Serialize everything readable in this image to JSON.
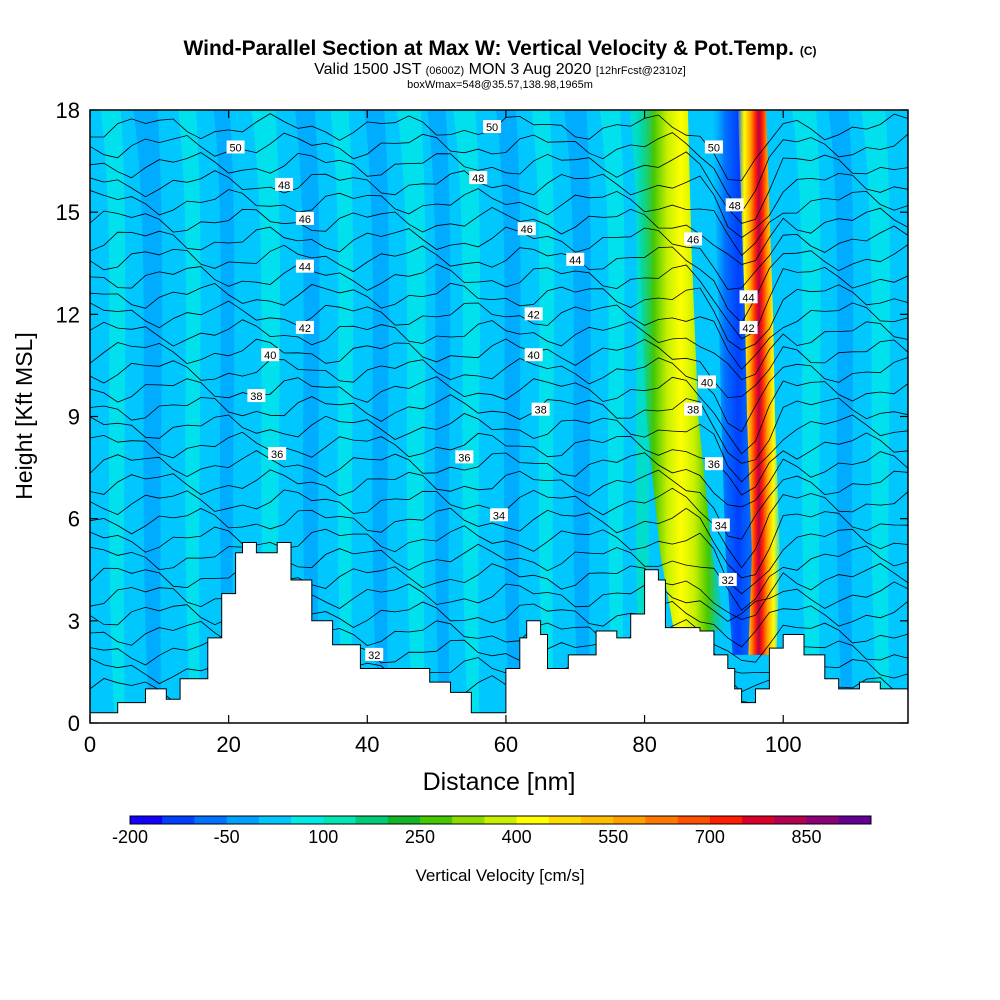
{
  "header": {
    "title": "Wind-Parallel Section at Max W: Vertical Velocity & Pot.Temp.",
    "title_mark": "(C)",
    "valid_prefix": "Valid 1500 JST",
    "valid_utc": "(0600Z)",
    "valid_date": "MON 3 Aug 2020",
    "forecast_note": "[12hrFcst@2310z]",
    "box_info": "boxWmax=548@35.57,138.98,1965m"
  },
  "chart_data": {
    "type": "heatmap",
    "xlabel": "Distance [nm]",
    "ylabel": "Height [Kft MSL]",
    "xlim": [
      0,
      118
    ],
    "ylim": [
      0,
      18
    ],
    "x_ticks": [
      0,
      20,
      40,
      60,
      80,
      100
    ],
    "y_ticks": [
      0,
      3,
      6,
      9,
      12,
      15,
      18
    ],
    "colorbar": {
      "label": "Vertical Velocity [cm/s]",
      "tick_labels": [
        "-200",
        "-50",
        "100",
        "250",
        "400",
        "550",
        "700",
        "850"
      ],
      "colors": [
        "#1400ff",
        "#0040ff",
        "#0070ff",
        "#00a0ff",
        "#00c8ff",
        "#00ebe6",
        "#00e6b4",
        "#00cc78",
        "#14b428",
        "#46c800",
        "#8cdc00",
        "#c8f000",
        "#ffff00",
        "#ffdc00",
        "#ffbe00",
        "#ffa000",
        "#ff7800",
        "#ff5000",
        "#ff1e00",
        "#dc0028",
        "#b40050",
        "#8c0078",
        "#640096"
      ]
    },
    "terrain_kft": [
      [
        0,
        0.3
      ],
      [
        2,
        0.3
      ],
      [
        4,
        0.6
      ],
      [
        8,
        1.0
      ],
      [
        11,
        0.7
      ],
      [
        13,
        1.3
      ],
      [
        17,
        2.5
      ],
      [
        19,
        3.8
      ],
      [
        21,
        5.0
      ],
      [
        22,
        5.3
      ],
      [
        24,
        5.0
      ],
      [
        27,
        5.3
      ],
      [
        29,
        4.2
      ],
      [
        32,
        3.0
      ],
      [
        35,
        2.3
      ],
      [
        39,
        1.6
      ],
      [
        45,
        1.6
      ],
      [
        49,
        1.2
      ],
      [
        52,
        0.9
      ],
      [
        55,
        0.3
      ],
      [
        58,
        0.3
      ],
      [
        60,
        1.6
      ],
      [
        62,
        2.5
      ],
      [
        63,
        3.0
      ],
      [
        65,
        2.6
      ],
      [
        66,
        1.6
      ],
      [
        69,
        2.0
      ],
      [
        73,
        2.7
      ],
      [
        76,
        2.5
      ],
      [
        78,
        3.2
      ],
      [
        80,
        4.5
      ],
      [
        82,
        4.2
      ],
      [
        83,
        2.8
      ],
      [
        88,
        2.7
      ],
      [
        90,
        2.0
      ],
      [
        92,
        1.6
      ],
      [
        93,
        1.0
      ],
      [
        94,
        0.6
      ],
      [
        96,
        1.0
      ],
      [
        98,
        2.2
      ],
      [
        100,
        2.6
      ],
      [
        103,
        2.0
      ],
      [
        106,
        1.3
      ],
      [
        108,
        1.0
      ],
      [
        111,
        1.2
      ],
      [
        114,
        1.0
      ],
      [
        118,
        1.0
      ]
    ],
    "updraft_core": [
      [
        82.5,
        18
      ],
      [
        83,
        14
      ],
      [
        84,
        9
      ],
      [
        86,
        5
      ],
      [
        88,
        2.7
      ]
    ],
    "downdraft_band": [
      [
        92,
        18
      ],
      [
        93,
        12
      ],
      [
        93.5,
        8
      ],
      [
        94,
        5
      ],
      [
        95,
        2
      ]
    ],
    "main_updraft": [
      [
        95.5,
        18
      ],
      [
        96.5,
        12
      ],
      [
        96.8,
        9
      ],
      [
        97.5,
        5
      ],
      [
        97,
        2
      ]
    ],
    "theta_labels": [
      {
        "text": "50",
        "x": 21,
        "y": 16.9
      },
      {
        "text": "50",
        "x": 58,
        "y": 17.5
      },
      {
        "text": "50",
        "x": 90,
        "y": 16.9
      },
      {
        "text": "48",
        "x": 28,
        "y": 15.8
      },
      {
        "text": "48",
        "x": 56,
        "y": 16.0
      },
      {
        "text": "48",
        "x": 93,
        "y": 15.2
      },
      {
        "text": "46",
        "x": 31,
        "y": 14.8
      },
      {
        "text": "46",
        "x": 63,
        "y": 14.5
      },
      {
        "text": "46",
        "x": 87,
        "y": 14.2
      },
      {
        "text": "44",
        "x": 31,
        "y": 13.4
      },
      {
        "text": "44",
        "x": 70,
        "y": 13.6
      },
      {
        "text": "44",
        "x": 95,
        "y": 12.5
      },
      {
        "text": "42",
        "x": 31,
        "y": 11.6
      },
      {
        "text": "42",
        "x": 64,
        "y": 12.0
      },
      {
        "text": "42",
        "x": 95,
        "y": 11.6
      },
      {
        "text": "40",
        "x": 26,
        "y": 10.8
      },
      {
        "text": "40",
        "x": 64,
        "y": 10.8
      },
      {
        "text": "40",
        "x": 89,
        "y": 10.0
      },
      {
        "text": "38",
        "x": 24,
        "y": 9.6
      },
      {
        "text": "38",
        "x": 65,
        "y": 9.2
      },
      {
        "text": "38",
        "x": 87,
        "y": 9.2
      },
      {
        "text": "36",
        "x": 27,
        "y": 7.9
      },
      {
        "text": "36",
        "x": 54,
        "y": 7.8
      },
      {
        "text": "36",
        "x": 90,
        "y": 7.6
      },
      {
        "text": "34",
        "x": 59,
        "y": 6.1
      },
      {
        "text": "34",
        "x": 91,
        "y": 5.8
      },
      {
        "text": "32",
        "x": 41,
        "y": 2.0
      },
      {
        "text": "32",
        "x": 92,
        "y": 4.2
      }
    ]
  }
}
